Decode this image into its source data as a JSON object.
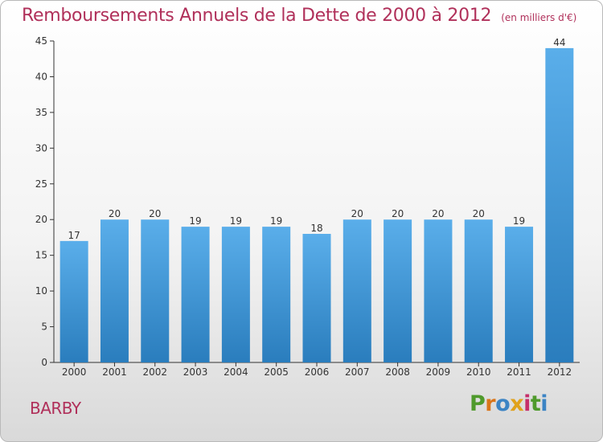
{
  "header": {
    "title": "Remboursements Annuels de la Dette de 2000 à 2012",
    "subtitle": "(en milliers d'€)"
  },
  "footer": {
    "city": "BARBY",
    "brand": "Proxiti"
  },
  "colors": {
    "title": "#b0305a",
    "bar_top": "#5aaeea",
    "bar_bottom": "#2a7dbd",
    "axis": "#333333",
    "logo_letters": [
      "#4f9a2c",
      "#d9751a",
      "#3c84c4",
      "#e0a21c",
      "#c62f6b",
      "#4f9a2c",
      "#3c84c4"
    ]
  },
  "chart_data": {
    "type": "bar",
    "title": "Remboursements Annuels de la Dette de 2000 à 2012",
    "xlabel": "",
    "ylabel": "",
    "categories": [
      "2000",
      "2001",
      "2002",
      "2003",
      "2004",
      "2005",
      "2006",
      "2007",
      "2008",
      "2009",
      "2010",
      "2011",
      "2012"
    ],
    "values": [
      17,
      20,
      20,
      19,
      19,
      19,
      18,
      20,
      20,
      20,
      20,
      19,
      44
    ],
    "ylim": [
      0,
      45
    ],
    "yticks": [
      0,
      5,
      10,
      15,
      20,
      25,
      30,
      35,
      40,
      45
    ],
    "grid": false,
    "legend": "none",
    "data_labels": true
  }
}
